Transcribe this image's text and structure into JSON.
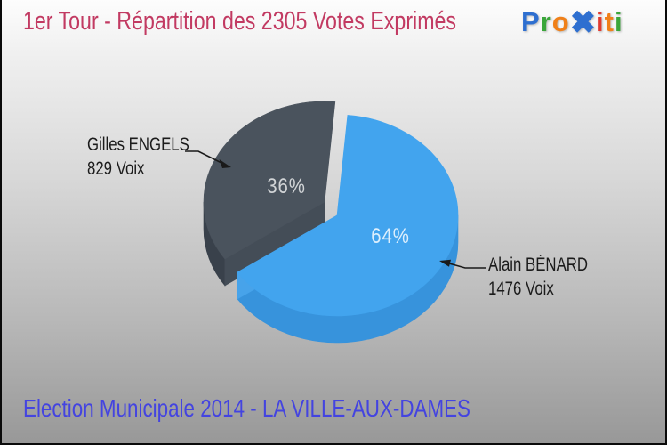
{
  "header": {
    "title": "1er Tour - Répartition des 2305 Votes Exprimés",
    "logo": {
      "text": "Proxiti",
      "letters": [
        {
          "ch": "P",
          "color": "#2e6fd0",
          "big": false
        },
        {
          "ch": "r",
          "color": "#3aa63a",
          "big": false
        },
        {
          "ch": "o",
          "color": "#f08019",
          "big": false
        },
        {
          "ch": "✖",
          "color": "#2e6fd0",
          "big": true
        },
        {
          "ch": "i",
          "color": "#e23a2e",
          "big": false
        },
        {
          "ch": "t",
          "color": "#f08019",
          "big": false
        },
        {
          "ch": "i",
          "color": "#3aa63a",
          "big": false
        }
      ]
    }
  },
  "chart_data": {
    "type": "pie",
    "style": "3d-exploded-pie",
    "title": "1er Tour - Répartition des 2305 Votes Exprimés",
    "total": 2305,
    "total_label": "2305 Votes Exprimés",
    "unit": "Voix",
    "start_angle_deg": 5,
    "direction": "clockwise",
    "legend_position": "callouts",
    "slices": [
      {
        "label": "Alain BÉNARD",
        "value": 1476,
        "votes_label": "1476 Voix",
        "percent": 64,
        "percent_label": "64%",
        "color": "#42a4ee",
        "side_color": "#3793dc",
        "cut_color": "#47a3ea",
        "exploded": false
      },
      {
        "label": "Gilles ENGELS",
        "value": 829,
        "votes_label": "829 Voix",
        "percent": 36,
        "percent_label": "36%",
        "color": "#4a535d",
        "side_color": "#39414b",
        "cut_color": "#444d57",
        "exploded": true
      }
    ]
  },
  "footer": {
    "caption": "Election Municipale 2014 - LA VILLE-AUX-DAMES"
  }
}
